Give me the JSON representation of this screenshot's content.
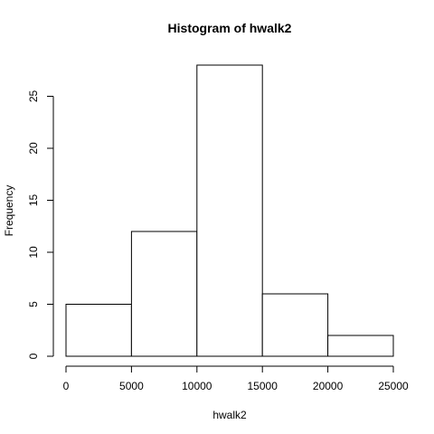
{
  "chart_data": {
    "type": "bar",
    "title": "Histogram of hwalk2",
    "xlabel": "hwalk2",
    "ylabel": "Frequency",
    "bins": [
      {
        "start": 0,
        "end": 5000,
        "count": 5
      },
      {
        "start": 5000,
        "end": 10000,
        "count": 12
      },
      {
        "start": 10000,
        "end": 15000,
        "count": 28
      },
      {
        "start": 15000,
        "end": 20000,
        "count": 6
      },
      {
        "start": 20000,
        "end": 25000,
        "count": 2
      }
    ],
    "xlim": [
      0,
      25000
    ],
    "ylim": [
      0,
      28
    ],
    "xticks": [
      0,
      5000,
      10000,
      15000,
      20000,
      25000
    ],
    "yticks": [
      0,
      5,
      10,
      15,
      20,
      25
    ],
    "grid": false,
    "colors": {
      "bar_fill": "#ffffff",
      "bar_stroke": "#000000",
      "axis": "#000000"
    }
  }
}
